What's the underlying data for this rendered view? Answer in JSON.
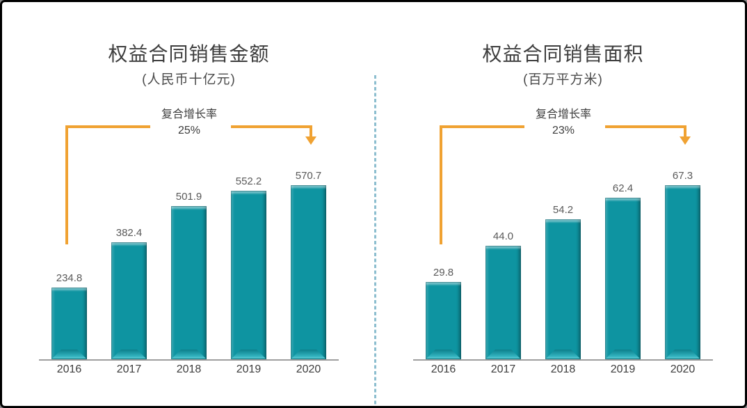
{
  "window": {
    "background": "#FFFFFF",
    "border_color": "#000000"
  },
  "divider": {
    "orientation": "vertical",
    "style": "dashed",
    "color": "#8CBECF"
  },
  "colors": {
    "bar_fill": "#0E94A1",
    "bar_top_bevel": "#4DC1CC",
    "annotation_orange": "#F0A232",
    "axis_line": "#9E9E9E",
    "title_text": "#3D3D3D",
    "value_text": "#595959"
  },
  "chart_data": [
    {
      "type": "bar",
      "title": "权益合同销售金额",
      "subtitle": "(人民币十亿元)",
      "cagr_label": "复合增长率",
      "cagr_value": "25%",
      "categories": [
        "2016",
        "2017",
        "2018",
        "2019",
        "2020"
      ],
      "values": [
        234.8,
        382.4,
        501.9,
        552.2,
        570.7
      ],
      "value_labels": [
        "234.8",
        "382.4",
        "501.9",
        "552.2",
        "570.7"
      ],
      "xlabel": "",
      "ylabel": "",
      "ylim": [
        0,
        570.7
      ],
      "grid": false,
      "legend": "none",
      "bar_color": "#0E94A1",
      "annotation": "bracket-arrow from 2016 to 2020 with CAGR 25%"
    },
    {
      "type": "bar",
      "title": "权益合同销售面积",
      "subtitle": "(百万平方米)",
      "cagr_label": "复合增长率",
      "cagr_value": "23%",
      "categories": [
        "2016",
        "2017",
        "2018",
        "2019",
        "2020"
      ],
      "values": [
        29.8,
        44.0,
        54.2,
        62.4,
        67.3
      ],
      "value_labels": [
        "29.8",
        "44.0",
        "54.2",
        "62.4",
        "67.3"
      ],
      "xlabel": "",
      "ylabel": "",
      "ylim": [
        0,
        67.3
      ],
      "grid": false,
      "legend": "none",
      "bar_color": "#0E94A1",
      "annotation": "bracket-arrow from 2016 to 2020 with CAGR 23%"
    }
  ]
}
